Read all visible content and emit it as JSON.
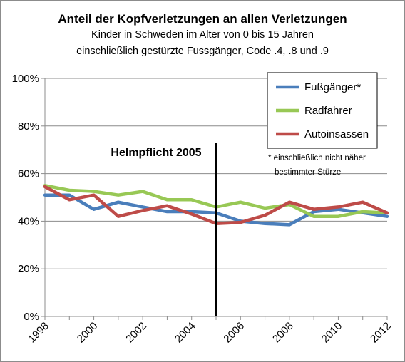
{
  "chart_data": {
    "type": "line",
    "title": "Anteil der Kopfverletzungen an allen Verletzungen",
    "subtitle_1": "Kinder in Schweden im Alter von 0 bis 15 Jahren",
    "subtitle_2": "einschließlich gestürzte Fussgänger, Code .4, .8 und .9",
    "x": [
      1998,
      1999,
      2000,
      2001,
      2002,
      2003,
      2004,
      2005,
      2006,
      2007,
      2008,
      2009,
      2010,
      2011,
      2012
    ],
    "x_tick_labels": [
      "1998",
      "2000",
      "2002",
      "2004",
      "2006",
      "2008",
      "2010",
      "2012"
    ],
    "y_tick_labels": [
      "0%",
      "20%",
      "40%",
      "60%",
      "80%",
      "100%"
    ],
    "ylim": [
      0,
      100
    ],
    "xlim": [
      1998,
      2012
    ],
    "grid": "horizontal",
    "legend_position": "top-right",
    "series": [
      {
        "name": "Fußgänger*",
        "color": "#4a7ebb",
        "values": [
          51,
          51,
          45,
          48,
          46,
          44,
          44,
          43.5,
          40,
          39,
          38.5,
          44,
          45,
          43.5,
          42
        ]
      },
      {
        "name": "Radfahrer",
        "color": "#98c855",
        "values": [
          55,
          53,
          52.5,
          51,
          52.5,
          49,
          49,
          46,
          48,
          45.5,
          47,
          42,
          42,
          44,
          43.5
        ]
      },
      {
        "name": "Autoinsassen",
        "color": "#be4b48",
        "values": [
          54.5,
          49,
          51,
          42,
          44.5,
          46.5,
          43,
          39,
          39.5,
          42.5,
          48,
          45,
          46,
          48,
          43.5
        ]
      }
    ],
    "annotation": {
      "label": "Helmpflicht 2005",
      "x": 2005
    },
    "footnote_line1": "* einschließlich nicht näher",
    "footnote_line2": "bestimmter Stürze"
  }
}
